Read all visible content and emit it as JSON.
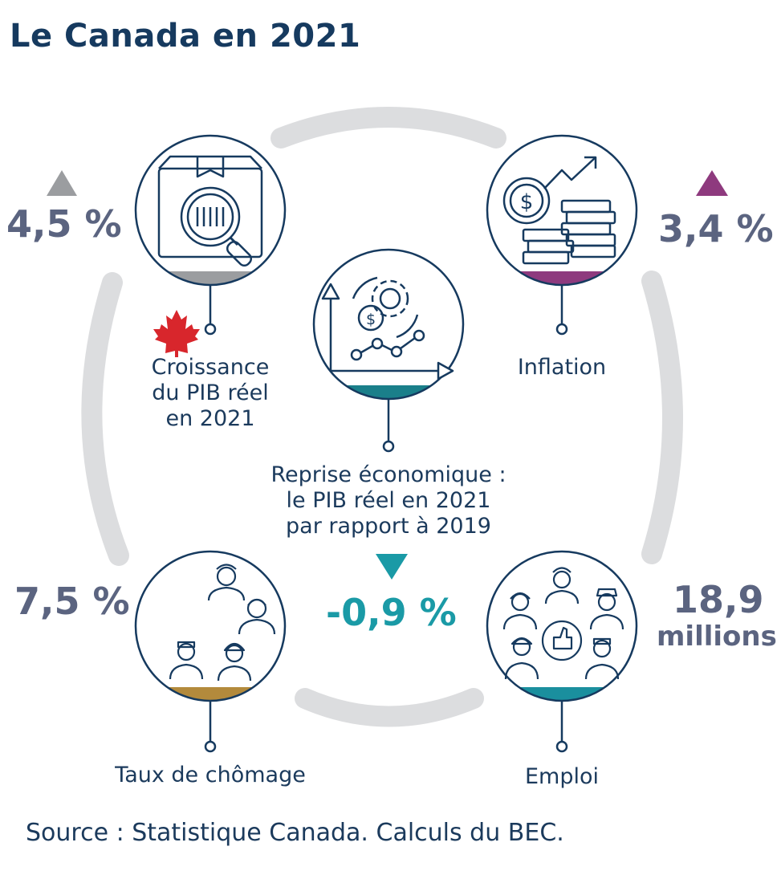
{
  "title": "Le Canada en 2021",
  "indicators": {
    "gdp_growth": {
      "value": "4,5 %",
      "label_lines": [
        "Croissance",
        "du PIB réel",
        "en 2021"
      ],
      "trend": "up",
      "band_color": "#9b9da0"
    },
    "inflation": {
      "value": "3,4 %",
      "label_lines": [
        "Inflation"
      ],
      "trend": "up",
      "band_color": "#8e3a7e"
    },
    "recovery": {
      "value": "-0,9 %",
      "label_lines": [
        "Reprise économique :",
        "le PIB réel en 2021",
        "par rapport à 2019"
      ],
      "trend": "down",
      "band_color": "#1a7f8a"
    },
    "unemployment": {
      "value": "7,5 %",
      "label_lines": [
        "Taux de chômage"
      ],
      "band_color": "#b38a3c"
    },
    "employment": {
      "value_line1": "18,9",
      "value_line2": "millions",
      "label_lines": [
        "Emploi"
      ],
      "band_color": "#1a8f9e"
    }
  },
  "colors": {
    "navy": "#163a5f",
    "ring": "#dcdddf",
    "value_text": "#5b6480",
    "recovery_text": "#1a9aa6",
    "maple_leaf": "#d8262c"
  },
  "icons": {
    "gdp_growth": "box-barcode-magnifier-icon",
    "inflation": "coins-dollar-arrow-icon",
    "recovery": "gear-dollar-chart-icon",
    "unemployment": "workers-group-icon",
    "employment": "workers-thumbs-up-icon",
    "flag": "maple-leaf-icon"
  },
  "source": "Source : Statistique Canada. Calculs du BEC."
}
